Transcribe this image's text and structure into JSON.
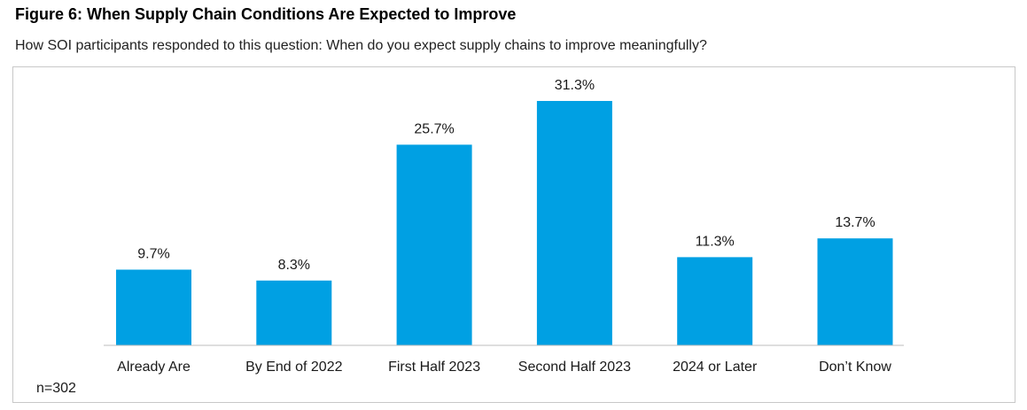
{
  "header": {
    "title": "Figure 6: When Supply Chain Conditions Are Expected to Improve",
    "subtitle": "How SOI participants responded to this question: When do you expect supply chains to improve meaningfully?"
  },
  "note": "n=302",
  "chart_data": {
    "type": "bar",
    "title": "Figure 6: When Supply Chain Conditions Are Expected to Improve",
    "subtitle": "How SOI participants responded to this question: When do you expect supply chains to improve meaningfully?",
    "categories": [
      "Already Are",
      "By End of 2022",
      "First Half 2023",
      "Second Half 2023",
      "2024 or Later",
      "Don’t Know"
    ],
    "values": [
      9.7,
      8.3,
      25.7,
      31.3,
      11.3,
      13.7
    ],
    "value_labels": [
      "9.7%",
      "8.3%",
      "25.7%",
      "31.3%",
      "11.3%",
      "13.7%"
    ],
    "unit": "%",
    "xlabel": "",
    "ylabel": "",
    "ylim": [
      0,
      31.3
    ],
    "grid": false,
    "legend": "none",
    "bar_color": "#00A0E3",
    "baseline_color": "#bdbdbd"
  }
}
